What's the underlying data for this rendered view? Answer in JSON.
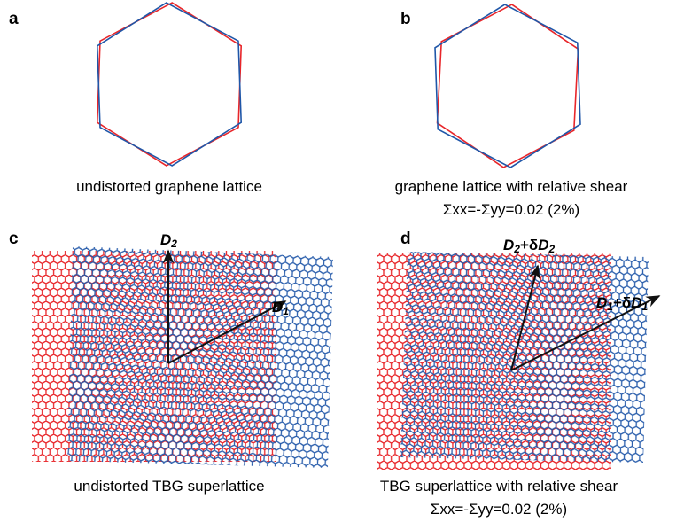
{
  "panels": [
    {
      "label": "a",
      "caption": [
        "undistorted graphene lattice"
      ]
    },
    {
      "label": "b",
      "caption": [
        "graphene lattice with relative shear",
        "Σxx=-Σyy=0.02  (2%)"
      ]
    },
    {
      "label": "c",
      "caption": [
        "undistorted TBG superlattice"
      ],
      "vectors": [
        [
          "D",
          "2"
        ],
        [
          "D",
          "1"
        ]
      ]
    },
    {
      "label": "d",
      "caption": [
        "TBG superlattice with relative shear",
        "Σxx=-Σyy=0.02  (2%)"
      ],
      "vectors": [
        [
          "D",
          "2",
          "+δ",
          "D",
          "2"
        ],
        [
          "D",
          "1",
          "+δ",
          "D",
          "1"
        ]
      ]
    }
  ]
}
